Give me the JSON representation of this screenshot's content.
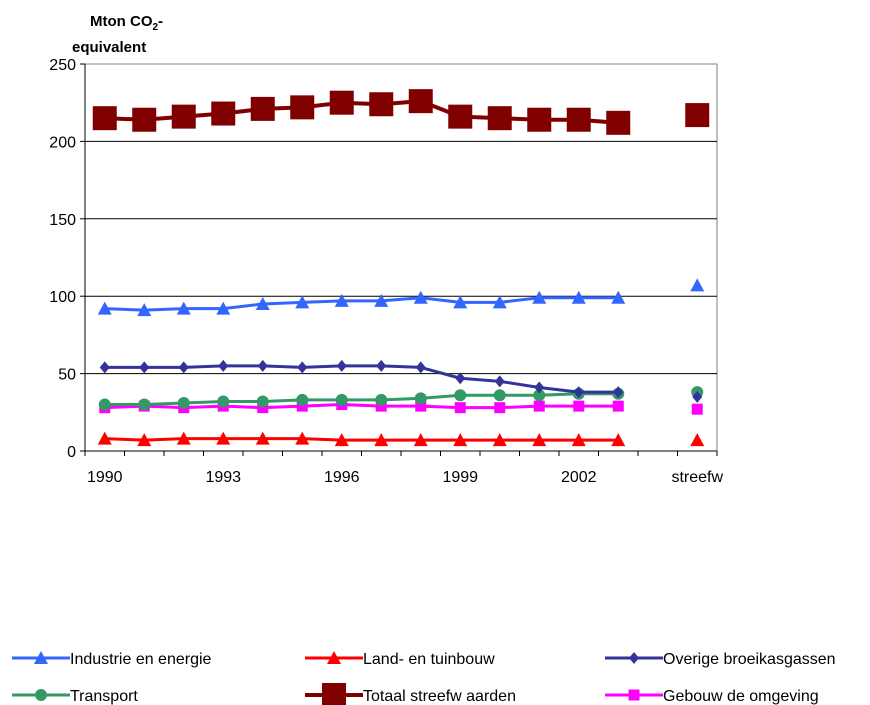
{
  "chart_data": {
    "type": "line",
    "ylabel_line1": "Mton CO",
    "ylabel_sub": "2",
    "ylabel_suffix": "-",
    "ylabel_line2": "equivalent",
    "ylim": [
      0,
      250
    ],
    "yticks": [
      "0",
      "50",
      "100",
      "150",
      "200",
      "250"
    ],
    "categories": [
      "1990",
      "1991",
      "1992",
      "1993",
      "1994",
      "1995",
      "1996",
      "1997",
      "1998",
      "1999",
      "2000",
      "2001",
      "2002",
      "2003",
      "",
      "streefw"
    ],
    "xtick_labels": [
      "1990",
      "",
      "",
      "1993",
      "",
      "",
      "1996",
      "",
      "",
      "1999",
      "",
      "",
      "2002",
      "",
      "",
      "streefw"
    ],
    "grid": "horizontal",
    "legend_position": "bottom",
    "series": [
      {
        "name": "Industrie en energie",
        "color": "#3366FF",
        "marker": "triangle",
        "values": [
          92,
          91,
          92,
          92,
          95,
          96,
          97,
          97,
          99,
          96,
          96,
          99,
          99,
          99,
          null,
          107
        ],
        "connect_last": false
      },
      {
        "name": "Gebouw de omgeving",
        "color": "#FF00FF",
        "marker": "square",
        "values": [
          28,
          29,
          28,
          29,
          28,
          29,
          30,
          29,
          29,
          28,
          28,
          29,
          29,
          29,
          null,
          27
        ],
        "connect_last": false
      },
      {
        "name": "Land- en tuinbouw",
        "color": "#FF0000",
        "marker": "triangle",
        "values": [
          8,
          7,
          8,
          8,
          8,
          8,
          7,
          7,
          7,
          7,
          7,
          7,
          7,
          7,
          null,
          7
        ],
        "connect_last": false
      },
      {
        "name": "Transport",
        "color": "#339966",
        "marker": "circle",
        "values": [
          30,
          30,
          31,
          32,
          32,
          33,
          33,
          33,
          34,
          36,
          36,
          36,
          37,
          37,
          null,
          38
        ],
        "connect_last": false
      },
      {
        "name": "Overige broeikasgassen",
        "color": "#333399",
        "marker": "diamond",
        "values": [
          54,
          54,
          54,
          55,
          55,
          54,
          55,
          55,
          54,
          47,
          45,
          41,
          38,
          38,
          null,
          35
        ],
        "connect_last": false
      },
      {
        "name": "Totaal streefw aarden",
        "color": "#800000",
        "marker": "bigsquare",
        "values": [
          215,
          214,
          216,
          218,
          221,
          222,
          225,
          224,
          226,
          216,
          215,
          214,
          214,
          212,
          null,
          217
        ],
        "connect_last": false
      }
    ]
  },
  "legend_order": [
    0,
    2,
    4,
    3,
    5,
    1
  ]
}
